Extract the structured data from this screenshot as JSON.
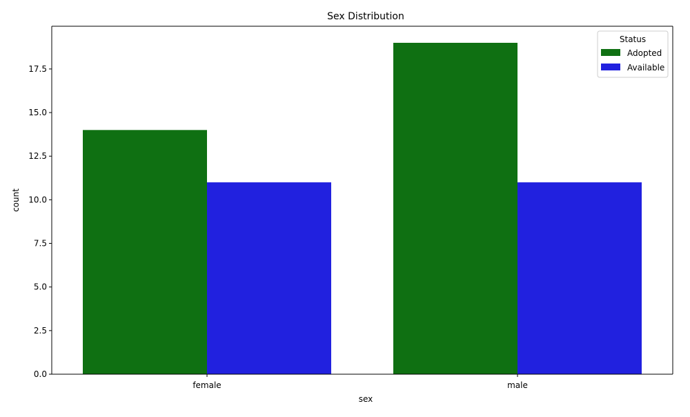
{
  "chart_data": {
    "type": "bar",
    "title": "Sex Distribution",
    "xlabel": "sex",
    "ylabel": "count",
    "categories": [
      "female",
      "male"
    ],
    "series": [
      {
        "name": "Adopted",
        "values": [
          14,
          19
        ],
        "color": "#0f7012"
      },
      {
        "name": "Available",
        "values": [
          11,
          11
        ],
        "color": "#2121df"
      }
    ],
    "ylim": [
      0,
      19.95
    ],
    "y_ticks": [
      0.0,
      2.5,
      5.0,
      7.5,
      10.0,
      12.5,
      15.0,
      17.5
    ],
    "y_tick_labels": [
      "0.0",
      "2.5",
      "5.0",
      "7.5",
      "10.0",
      "12.5",
      "15.0",
      "17.5"
    ],
    "legend": {
      "title": "Status",
      "placement": "top-right"
    },
    "grid": false
  }
}
